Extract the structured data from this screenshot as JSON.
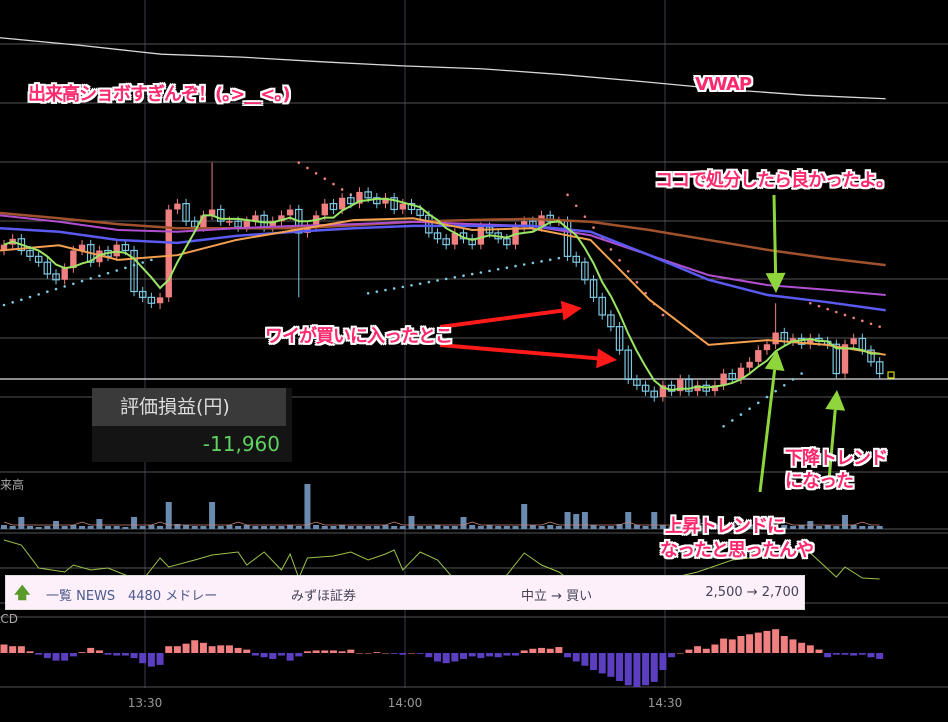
{
  "annotations": {
    "volume_comment": "出来高ショボすぎんぞ！(｡>__<｡)",
    "vwap_label": "VWAP",
    "sell_here": "ココで処分したら良かったよ。",
    "bought_here": "ワイが買いに入ったとこ",
    "downtrend_line1": "下降トレンド",
    "downtrend_line2": "になった",
    "uptrend_line1": "上昇トレンドに",
    "uptrend_line2": "なったと思ったんや"
  },
  "pnl": {
    "label": "評価損益(円)",
    "value": "-11,960"
  },
  "panels": {
    "volume": "出来高",
    "macd": "MACD"
  },
  "news": {
    "icon": "up-arrow-icon",
    "category": "一覧 NEWS",
    "code_name": "4480 メドレー",
    "broker": "みずほ証券",
    "rating": "中立 → 買い",
    "target": "2,500 → 2,700"
  },
  "colors": {
    "up_candle": "#f08080",
    "down_candle": "#7ec8e3",
    "ma_short": "#9be564",
    "ma_orange": "#f5a050",
    "ma_blue": "#5a5af0",
    "ma_purple": "#b050d0",
    "ma_brown": "#a0522d",
    "vwap": "#d8d8d8",
    "annotation": "#ff2a6d",
    "red_arrow": "#ff1a1a",
    "green_arrow": "#8ed63c",
    "macd_pos": "#f08080",
    "macd_neg": "#5b3fc0",
    "volume": "#6a8ab0"
  },
  "chart_data": {
    "type": "candlestick",
    "x_ticks": [
      "13:30",
      "14:00",
      "14:30"
    ],
    "grid": true,
    "price": {
      "open": [
        2.5,
        2.6,
        2.7,
        2.5,
        2.4,
        2.3,
        2.1,
        2.0,
        2.2,
        2.5,
        2.6,
        2.3,
        2.5,
        2.4,
        2.6,
        2.5,
        1.8,
        1.7,
        1.6,
        1.7,
        3.2,
        3.3,
        3.0,
        2.9,
        3.1,
        3.2,
        3.0,
        3.0,
        2.9,
        3.0,
        3.1,
        2.9,
        3.0,
        3.1,
        3.2,
        2.8,
        2.9,
        3.1,
        3.3,
        3.2,
        3.4,
        3.3,
        3.5,
        3.4,
        3.3,
        3.4,
        3.2,
        3.3,
        3.2,
        3.1,
        2.8,
        2.7,
        2.6,
        2.8,
        2.7,
        2.6,
        2.9,
        2.8,
        2.7,
        2.6,
        2.9,
        3.0,
        2.9,
        3.1,
        3.0,
        3.0,
        2.4,
        2.3,
        2.0,
        1.7,
        1.4,
        1.2,
        0.8,
        0.3,
        0.2,
        0.1,
        0.0,
        0.2,
        0.1,
        0.3,
        0.1,
        0.2,
        0.1,
        0.2,
        0.4,
        0.3,
        0.5,
        0.6,
        0.8,
        0.9,
        1.1,
        0.95,
        1.0,
        0.9,
        1.0,
        0.95,
        0.9,
        0.4,
        0.9,
        1.0,
        0.8,
        0.6
      ],
      "close": [
        2.6,
        2.7,
        2.5,
        2.4,
        2.3,
        2.1,
        2.0,
        2.2,
        2.5,
        2.6,
        2.3,
        2.5,
        2.4,
        2.6,
        2.5,
        1.8,
        1.7,
        1.6,
        1.7,
        3.2,
        3.3,
        3.0,
        2.9,
        3.1,
        3.2,
        3.0,
        3.0,
        2.9,
        3.0,
        3.1,
        2.9,
        3.0,
        3.1,
        3.2,
        2.8,
        2.9,
        3.1,
        3.3,
        3.2,
        3.4,
        3.3,
        3.5,
        3.4,
        3.3,
        3.4,
        3.2,
        3.3,
        3.2,
        3.1,
        2.8,
        2.7,
        2.6,
        2.8,
        2.7,
        2.6,
        2.9,
        2.8,
        2.7,
        2.6,
        2.9,
        3.0,
        2.9,
        3.1,
        3.0,
        3.0,
        2.4,
        2.3,
        2.0,
        1.7,
        1.4,
        1.2,
        0.8,
        0.3,
        0.2,
        0.1,
        0.0,
        0.2,
        0.1,
        0.3,
        0.1,
        0.2,
        0.1,
        0.2,
        0.4,
        0.3,
        0.5,
        0.6,
        0.8,
        0.9,
        1.1,
        0.95,
        1.0,
        0.9,
        1.0,
        0.95,
        0.9,
        0.4,
        0.9,
        1.0,
        0.8,
        0.6,
        0.4
      ],
      "notable_wicks": {
        "18": {
          "low": 1.5
        },
        "24": {
          "high": 4.0
        },
        "34": {
          "low": 1.7
        },
        "89": {
          "high": 1.6
        }
      }
    },
    "moving_averages": {
      "brown": [
        3.14,
        3.05,
        2.95,
        2.88,
        2.88,
        2.88,
        2.93,
        2.99,
        3.02,
        3.04,
        2.99,
        2.85,
        2.68,
        2.51,
        2.37,
        2.25
      ],
      "purple": [
        3.1,
        2.99,
        2.85,
        2.82,
        2.88,
        2.92,
        2.95,
        2.99,
        2.95,
        2.92,
        2.76,
        2.42,
        2.08,
        1.91,
        1.83,
        1.74
      ],
      "blue": [
        2.88,
        2.82,
        2.68,
        2.63,
        2.75,
        2.82,
        2.88,
        2.92,
        2.92,
        2.92,
        2.82,
        2.42,
        2.0,
        1.74,
        1.62,
        1.48
      ],
      "orange": [
        2.5,
        2.59,
        2.34,
        2.42,
        2.68,
        2.85,
        3.02,
        3.05,
        2.85,
        2.88,
        2.68,
        1.66,
        0.89,
        0.97,
        0.89,
        0.72
      ],
      "short_period": 5
    },
    "vwap": [
      6.13,
      6.0,
      5.85,
      5.8,
      5.72,
      5.65,
      5.6,
      5.5,
      5.38,
      5.25,
      5.15,
      5.09
    ],
    "parabolic_sar": [
      {
        "side": "below",
        "from": 0,
        "to": 17,
        "start": 1.57,
        "end": 2.34
      },
      {
        "side": "above",
        "from": 34,
        "to": 40,
        "start": 4.0,
        "end": 3.45
      },
      {
        "side": "below",
        "from": 42,
        "to": 64,
        "start": 1.77,
        "end": 2.37
      },
      {
        "side": "above",
        "from": 65,
        "to": 76,
        "start": 3.45,
        "end": 1.4
      },
      {
        "side": "below",
        "from": 83,
        "to": 92,
        "start": -0.5,
        "end": 0.4
      },
      {
        "side": "above",
        "from": 93,
        "to": 101,
        "start": 1.6,
        "end": 1.2
      }
    ],
    "volume": [
      4,
      3,
      12,
      3,
      2,
      3,
      8,
      3,
      4,
      3,
      3,
      10,
      3,
      3,
      2,
      12,
      3,
      4,
      3,
      27,
      5,
      4,
      3,
      3,
      27,
      3,
      4,
      3,
      4,
      3,
      3,
      3,
      3,
      4,
      3,
      45,
      4,
      3,
      3,
      4,
      3,
      3,
      3,
      3,
      4,
      3,
      3,
      13,
      3,
      3,
      4,
      3,
      3,
      12,
      4,
      3,
      4,
      3,
      3,
      3,
      25,
      4,
      3,
      4,
      3,
      17,
      15,
      17,
      4,
      3,
      3,
      5,
      17,
      4,
      3,
      17,
      4,
      3,
      3,
      4,
      10,
      3,
      4,
      3,
      4,
      3,
      4,
      3,
      5,
      3,
      4,
      3,
      4,
      8,
      3,
      4,
      3,
      14,
      4,
      3,
      3,
      3
    ],
    "oscillator": [
      [
        0,
        60
      ],
      [
        2,
        55
      ],
      [
        4,
        32
      ],
      [
        7,
        28
      ],
      [
        8,
        35
      ],
      [
        10,
        30
      ],
      [
        12,
        32
      ],
      [
        14,
        25
      ],
      [
        16,
        20
      ],
      [
        18,
        42
      ],
      [
        19,
        33
      ],
      [
        22,
        40
      ],
      [
        24,
        45
      ],
      [
        27,
        48
      ],
      [
        28,
        35
      ],
      [
        30,
        48
      ],
      [
        32,
        30
      ],
      [
        33,
        46
      ],
      [
        34,
        22
      ],
      [
        35,
        42
      ],
      [
        38,
        44
      ],
      [
        40,
        48
      ],
      [
        42,
        40
      ],
      [
        44,
        46
      ],
      [
        45,
        50
      ],
      [
        46,
        30
      ],
      [
        48,
        48
      ],
      [
        50,
        40
      ],
      [
        52,
        20
      ],
      [
        55,
        15
      ],
      [
        58,
        25
      ],
      [
        60,
        47
      ],
      [
        62,
        35
      ],
      [
        64,
        28
      ],
      [
        66,
        15
      ],
      [
        70,
        10
      ],
      [
        76,
        20
      ],
      [
        80,
        28
      ],
      [
        84,
        40
      ],
      [
        88,
        44
      ],
      [
        92,
        48
      ],
      [
        93,
        47
      ],
      [
        96,
        23
      ],
      [
        97,
        33
      ],
      [
        99,
        22
      ],
      [
        101,
        21
      ]
    ],
    "macd_histogram": [
      10,
      8,
      8,
      2,
      -2,
      -6,
      -9,
      -9,
      -4,
      1,
      6,
      3,
      -2,
      -3,
      -3,
      -6,
      -12,
      -16,
      -14,
      8,
      8,
      11,
      15,
      12,
      8,
      9,
      9,
      6,
      4,
      -3,
      -5,
      -7,
      -3,
      -9,
      -4,
      2,
      3,
      3,
      3,
      2,
      4,
      0,
      0,
      1,
      0,
      -1,
      -2,
      0,
      -1,
      -5,
      -10,
      -12,
      -10,
      -7,
      -4,
      -6,
      -4,
      -5,
      -3,
      -3,
      3,
      5,
      6,
      5,
      7,
      -5,
      -10,
      -15,
      -20,
      -24,
      -28,
      -33,
      -38,
      -40,
      -38,
      -34,
      -20,
      -5,
      0,
      4,
      8,
      5,
      10,
      17,
      16,
      20,
      22,
      24,
      26,
      28,
      20,
      16,
      12,
      9,
      4,
      -5,
      -2,
      -2,
      -3,
      -2,
      -5,
      -7
    ]
  }
}
